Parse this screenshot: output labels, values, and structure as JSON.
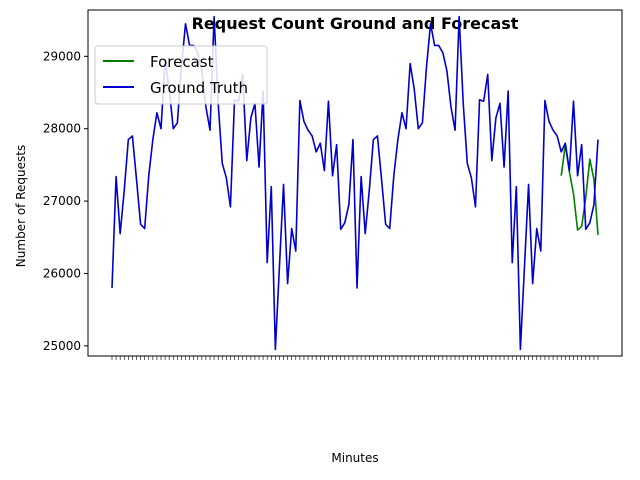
{
  "chart_data": {
    "type": "line",
    "title": "Request Count Ground and Forecast",
    "xlabel": "Minutes",
    "ylabel": "Number of Requests",
    "ylim": [
      24860,
      29640
    ],
    "yticks": [
      25000,
      26000,
      27000,
      28000,
      29000
    ],
    "grid": false,
    "legend_position": "top-left",
    "x_tick_labels_visible": false,
    "series": [
      {
        "name": "Forecast",
        "color": "#008000",
        "x": [
          110,
          111,
          112,
          113,
          114,
          115,
          116,
          117,
          118,
          119
        ],
        "values": [
          27350,
          27780,
          27400,
          27100,
          26600,
          26650,
          27050,
          27580,
          27300,
          26530
        ]
      },
      {
        "name": "Ground Truth",
        "color": "#0000cc",
        "x": [
          0,
          1,
          2,
          3,
          4,
          5,
          6,
          7,
          8,
          9,
          10,
          11,
          12,
          13,
          14,
          15,
          16,
          17,
          18,
          19,
          20,
          21,
          22,
          23,
          24,
          25,
          26,
          27,
          28,
          29,
          30,
          31,
          32,
          33,
          34,
          35,
          36,
          37,
          38,
          39,
          40,
          41,
          42,
          43,
          44,
          45,
          46,
          47,
          48,
          49,
          50,
          51,
          52,
          53,
          54,
          55,
          56,
          57,
          58,
          59,
          60,
          61,
          62,
          63,
          64,
          65,
          66,
          67,
          68,
          69,
          70,
          71,
          72,
          73,
          74,
          75,
          76,
          77,
          78,
          79,
          80,
          81,
          82,
          83,
          84,
          85,
          86,
          87,
          88,
          89,
          90,
          91,
          92,
          93,
          94,
          95,
          96,
          97,
          98,
          99,
          100,
          101,
          102,
          103,
          104,
          105,
          106,
          107,
          108,
          109,
          110,
          111,
          112,
          113,
          114,
          115,
          116,
          117,
          118,
          119
        ],
        "values": [
          25800,
          27340,
          26550,
          27150,
          27850,
          27900,
          27300,
          26680,
          26620,
          27350,
          27850,
          28220,
          28000,
          28950,
          28550,
          28000,
          28080,
          28850,
          29450,
          29150,
          29150,
          29050,
          28800,
          28300,
          27980,
          29550,
          28350,
          27520,
          27320,
          26920,
          28400,
          28380,
          28750,
          27560,
          28150,
          28350,
          27470,
          28520,
          26150,
          27200,
          24950,
          26100,
          27230,
          25860,
          26620,
          26310,
          28390,
          28100,
          27980,
          27900,
          27680,
          27800,
          27420,
          28380,
          27350,
          27780,
          26610,
          26700,
          26950,
          27850,
          25800,
          27340,
          26550,
          27150,
          27850,
          27900,
          27300,
          26680,
          26620,
          27350,
          27850,
          28220,
          28000,
          28900,
          28550,
          28000,
          28080,
          28850,
          29450,
          29150,
          29150,
          29050,
          28800,
          28300,
          27980,
          29550,
          28350,
          27520,
          27320,
          26920,
          28400,
          28380,
          28750,
          27560,
          28150,
          28350,
          27470,
          28520,
          26150,
          27200,
          24950,
          26100,
          27230,
          25860,
          26620,
          26310,
          28390,
          28100,
          27980,
          27900,
          27680,
          27800,
          27420,
          28380,
          27350,
          27780,
          26610,
          26700,
          26950,
          27850
        ]
      }
    ]
  }
}
